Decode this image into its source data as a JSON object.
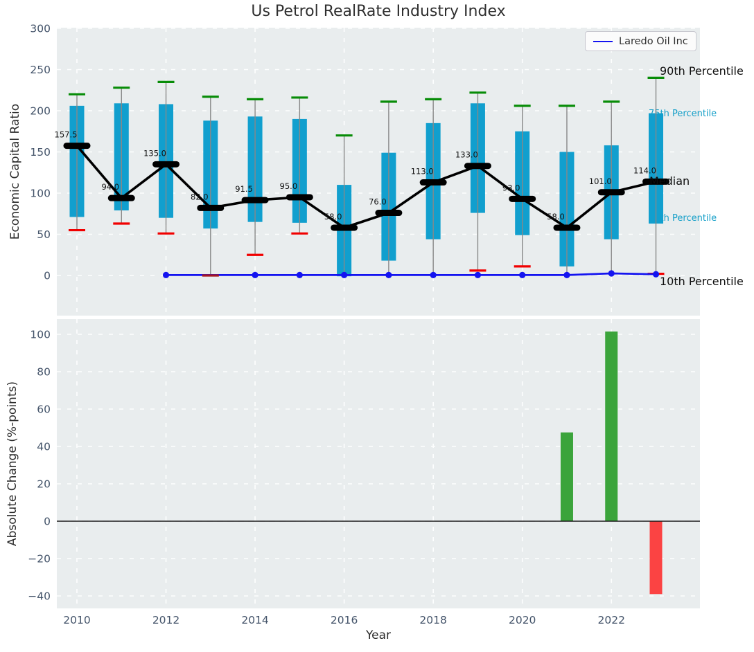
{
  "title": "Us Petrol RealRate Industry Index",
  "legend": {
    "label": "Laredo Oil Inc"
  },
  "axes": {
    "top": {
      "ylabel": "Economic Capital Ratio"
    },
    "bottom": {
      "ylabel": "Absolute Change (%-points)",
      "xlabel": "Year"
    }
  },
  "annotations": [
    {
      "id": "p90",
      "text": "90th Percentile",
      "tone": "black"
    },
    {
      "id": "p75",
      "text": "75th Percentile",
      "tone": "cyan"
    },
    {
      "id": "median",
      "text": "Median",
      "tone": "black"
    },
    {
      "id": "p25",
      "text": "25th Percentile",
      "tone": "cyan"
    },
    {
      "id": "p10",
      "text": "10th Percentile",
      "tone": "black"
    }
  ],
  "colors": {
    "box_fill": "#119fce",
    "p90_cap": "#078c07",
    "p10_cap": "#f10000",
    "p10_cap_dark": "#a51522",
    "median_black": "#000000",
    "company_line": "#1414f0",
    "bar_positive": "#3ba43b",
    "bar_negative": "#fb4343",
    "axes_bg": "#e9edee",
    "grid": "#ffffff",
    "tick_label": "#44546a",
    "annotation_cyan": "#149fc8",
    "whisker_gray": "#888888"
  },
  "chart_data": [
    {
      "type": "boxplot+line",
      "title": "Us Petrol RealRate Industry Index",
      "ylabel": "Economic Capital Ratio",
      "ylim": [
        -48,
        300
      ],
      "yticks": [
        0,
        50,
        100,
        150,
        200,
        250,
        300
      ],
      "grid": "white-dashed",
      "legend_position": "upper right",
      "boxes": [
        {
          "year": 2010,
          "p10": 55,
          "p25": 71,
          "median": 157.5,
          "p75": 206,
          "p90": 220,
          "label": "157.5",
          "p10_cap": "visible"
        },
        {
          "year": 2011,
          "p10": 63,
          "p25": 79,
          "median": 94.0,
          "p75": 209,
          "p90": 228,
          "label": "94.0",
          "p10_cap": "visible"
        },
        {
          "year": 2012,
          "p10": 51,
          "p25": 70,
          "median": 135.0,
          "p75": 208,
          "p90": 235,
          "label": "135.0",
          "p10_cap": "visible"
        },
        {
          "year": 2013,
          "p10": 0,
          "p25": 57,
          "median": 82.0,
          "p75": 188,
          "p90": 217,
          "label": "82.0",
          "p10_cap": "dark"
        },
        {
          "year": 2014,
          "p10": 25,
          "p25": 65,
          "median": 91.5,
          "p75": 193,
          "p90": 214,
          "label": "91.5",
          "p10_cap": "visible"
        },
        {
          "year": 2015,
          "p10": 51,
          "p25": 64,
          "median": 95.0,
          "p75": 190,
          "p90": 216,
          "label": "95.0",
          "p10_cap": "visible"
        },
        {
          "year": 2016,
          "p10": -1,
          "p25": -1,
          "median": 58.0,
          "p75": 110,
          "p90": 170,
          "label": "58.0",
          "p10_cap": "hidden"
        },
        {
          "year": 2017,
          "p10": 0,
          "p25": 18,
          "median": 76.0,
          "p75": 149,
          "p90": 211,
          "label": "76.0",
          "p10_cap": "hidden"
        },
        {
          "year": 2018,
          "p10": 0,
          "p25": 44,
          "median": 113.0,
          "p75": 185,
          "p90": 214,
          "label": "113.0",
          "p10_cap": "hidden"
        },
        {
          "year": 2019,
          "p10": 6,
          "p25": 76,
          "median": 133.0,
          "p75": 209,
          "p90": 222,
          "label": "133.0",
          "p10_cap": "visible"
        },
        {
          "year": 2020,
          "p10": 11,
          "p25": 49,
          "median": 93.0,
          "p75": 175,
          "p90": 206,
          "label": "93.0",
          "p10_cap": "visible"
        },
        {
          "year": 2021,
          "p10": 0,
          "p25": 11,
          "median": 58.0,
          "p75": 150,
          "p90": 206,
          "label": "58.0",
          "p10_cap": "hidden"
        },
        {
          "year": 2022,
          "p10": 1,
          "p25": 44,
          "median": 101.0,
          "p75": 158,
          "p90": 211,
          "label": "101.0",
          "p10_cap": "hidden"
        },
        {
          "year": 2023,
          "p10": 2,
          "p25": 63,
          "median": 114.0,
          "p75": 197,
          "p90": 240,
          "label": "114.0",
          "p10_cap": "visible"
        }
      ],
      "line_series": {
        "name": "Laredo Oil Inc",
        "points": [
          {
            "year": 2012,
            "value": 0.5
          },
          {
            "year": 2013,
            "value": 0.5,
            "dot": false
          },
          {
            "year": 2014,
            "value": 0.5
          },
          {
            "year": 2015,
            "value": 0.5
          },
          {
            "year": 2016,
            "value": 0.5
          },
          {
            "year": 2017,
            "value": 0.5
          },
          {
            "year": 2018,
            "value": 0.5
          },
          {
            "year": 2019,
            "value": 0.5
          },
          {
            "year": 2020,
            "value": 0.5
          },
          {
            "year": 2021,
            "value": 0.5
          },
          {
            "year": 2022,
            "value": 2.5
          },
          {
            "year": 2023,
            "value": 1.5
          }
        ]
      }
    },
    {
      "type": "bar",
      "ylabel": "Absolute Change (%-points)",
      "xlabel": "Year",
      "ylim": [
        -46,
        108
      ],
      "yticks": [
        -40,
        -20,
        0,
        20,
        40,
        60,
        80,
        100
      ],
      "xticks": [
        2010,
        2012,
        2014,
        2016,
        2018,
        2020,
        2022
      ],
      "grid": "white-dashed",
      "bars": [
        {
          "year": 2021,
          "value": 47.5,
          "tone": "positive"
        },
        {
          "year": 2022,
          "value": 101.5,
          "tone": "positive"
        },
        {
          "year": 2023,
          "value": -39,
          "tone": "negative"
        }
      ]
    }
  ]
}
